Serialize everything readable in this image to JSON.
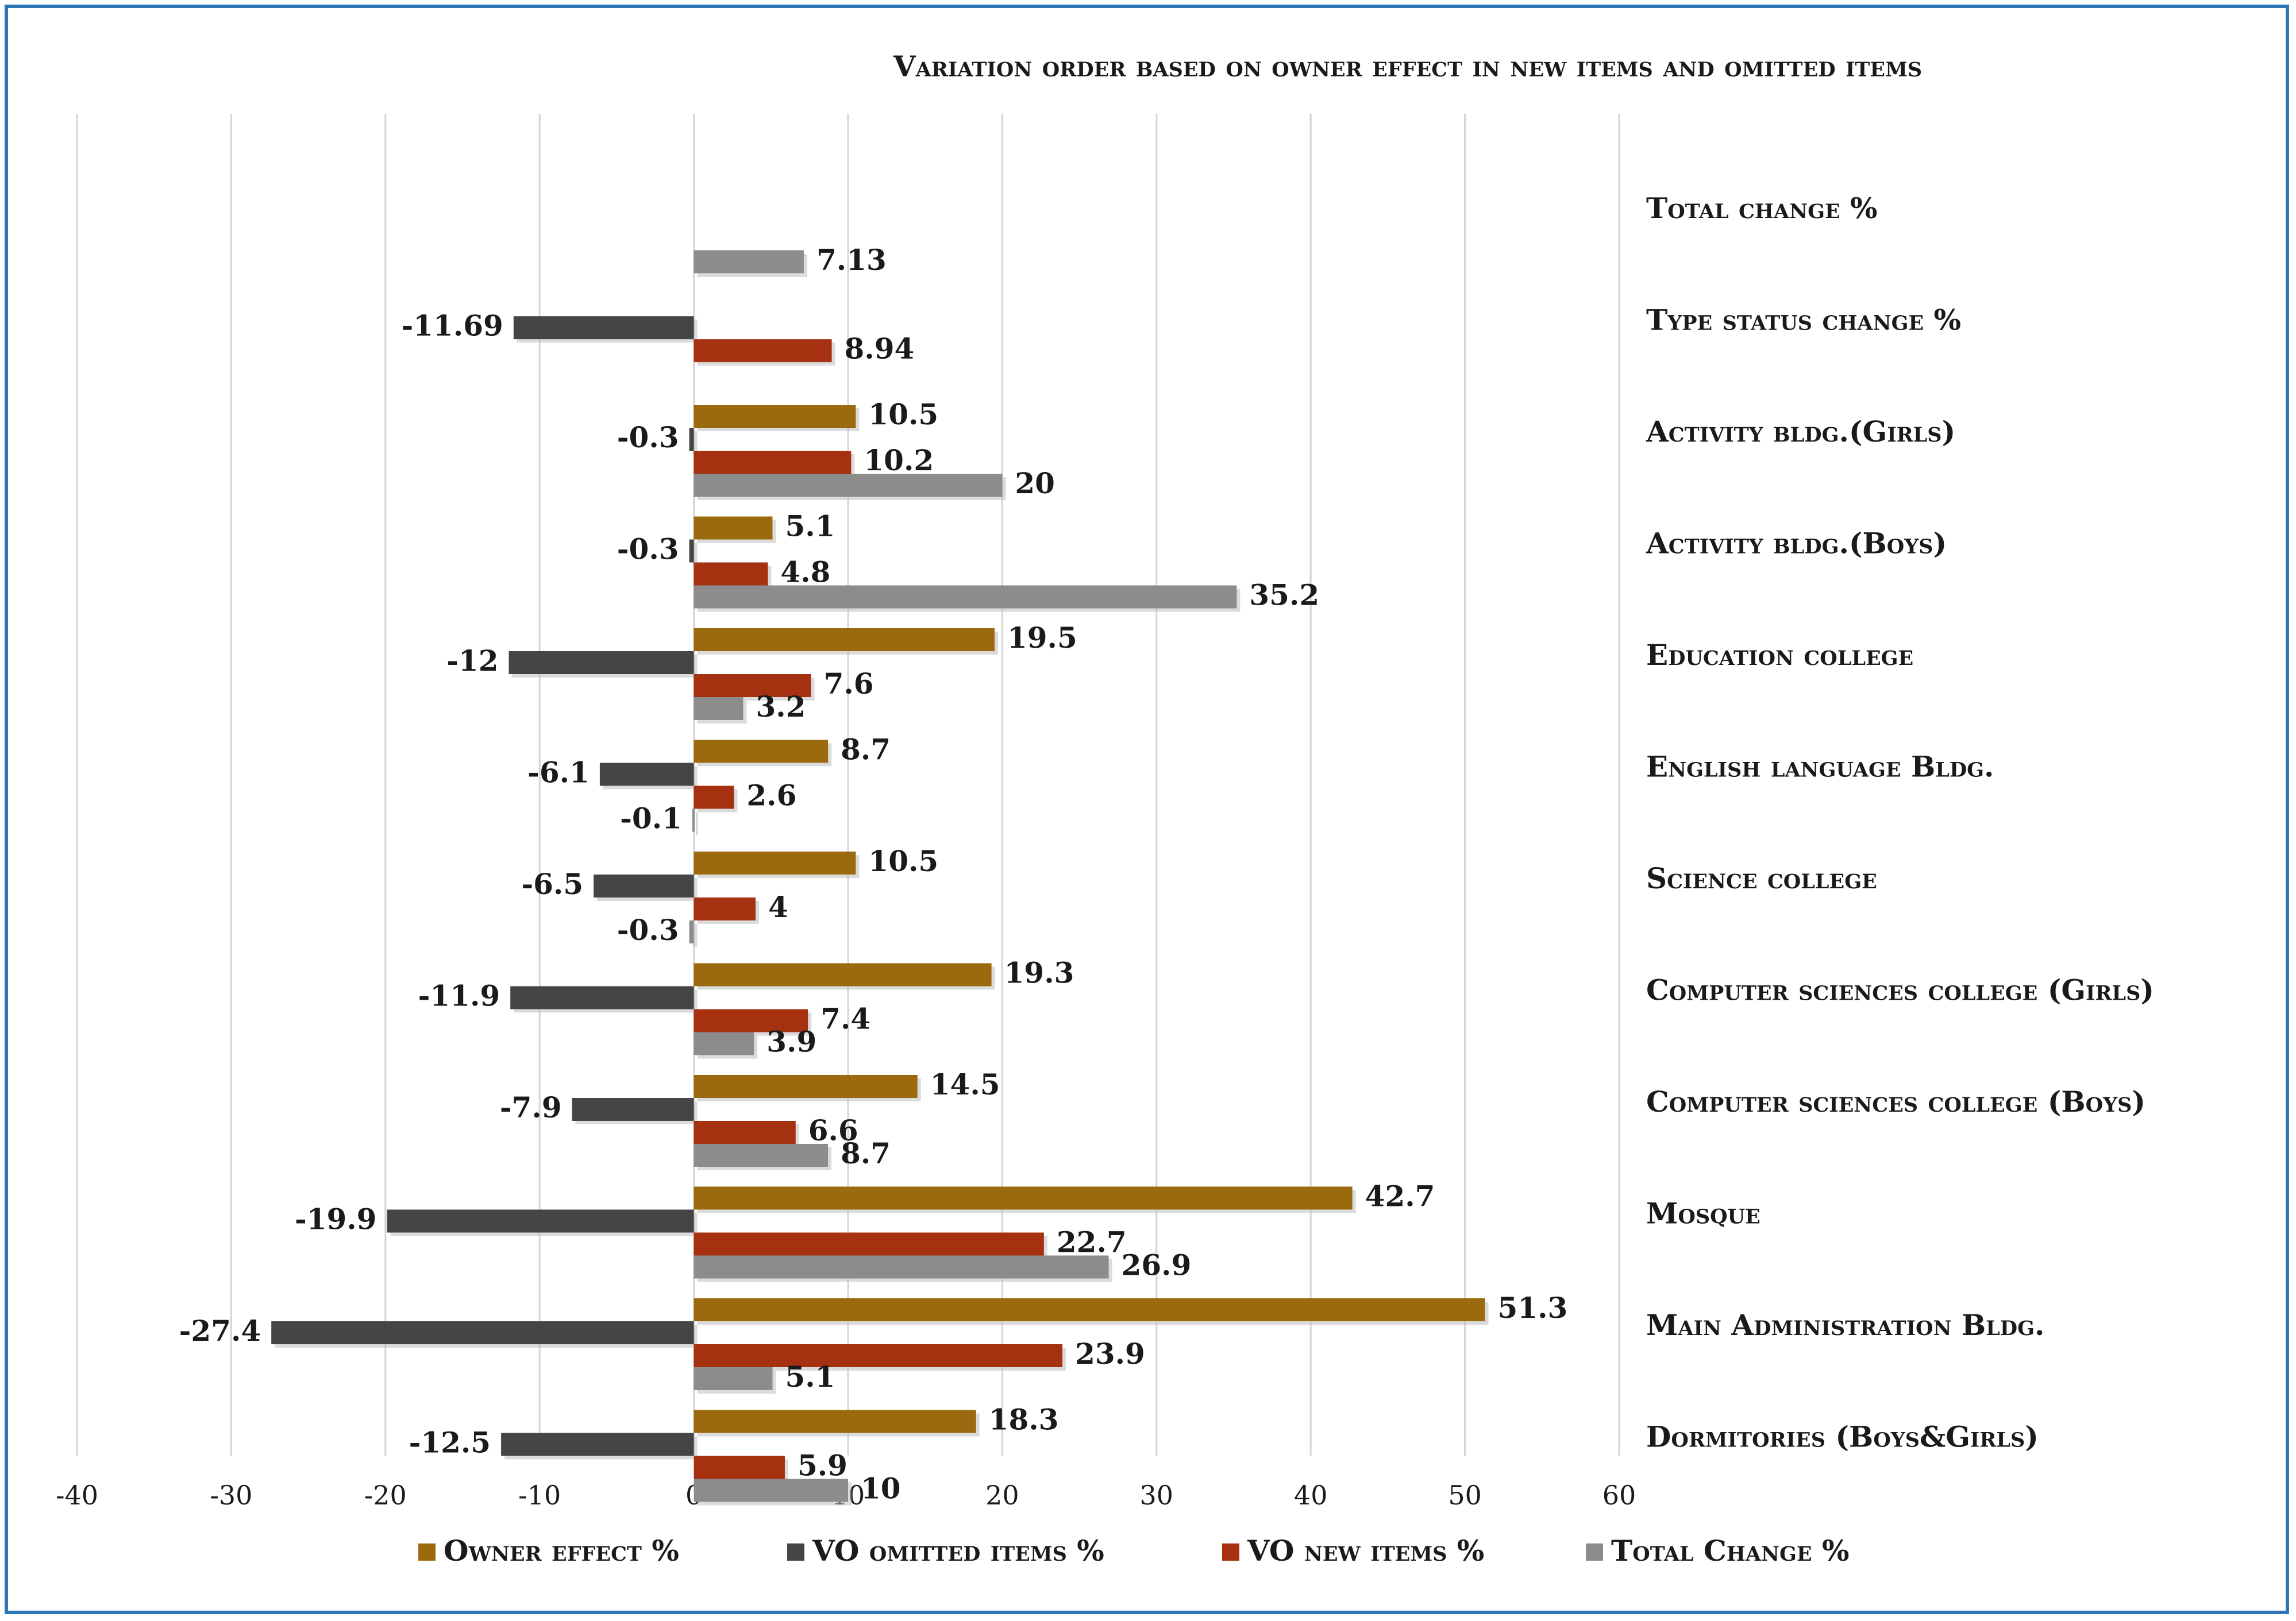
{
  "chart_data": {
    "type": "bar",
    "orientation": "horizontal",
    "title": "Variation order based on owner effect in new items and omitted items",
    "categories": [
      "Total change %",
      "Type status change %",
      "Activity bldg.(Girls)",
      "Activity bldg.(Boys)",
      "Education college",
      "English language Bldg.",
      "Science college",
      "Computer sciences college (Girls)",
      "Computer sciences college (Boys)",
      "Mosque",
      "Main Administration Bldg.",
      "Dormitories (Boys&Girls)"
    ],
    "series": [
      {
        "name": "Owner effect %",
        "color": "#9c6a0e",
        "values": [
          null,
          null,
          10.5,
          5.1,
          19.5,
          8.7,
          10.5,
          19.3,
          14.5,
          42.7,
          51.3,
          18.3
        ],
        "labels": [
          null,
          null,
          "10.5",
          "5.1",
          "19.5",
          "8.7",
          "10.5",
          "19.3",
          "14.5",
          "42.7",
          "51.3",
          "18.3"
        ]
      },
      {
        "name": "VO omitted items %",
        "color": "#454545",
        "values": [
          null,
          -11.69,
          -0.3,
          -0.3,
          -12,
          -6.1,
          -6.5,
          -11.9,
          -7.9,
          -19.9,
          -27.4,
          -12.5
        ],
        "labels": [
          null,
          "-11.69",
          "-0.3",
          "-0.3",
          "-12",
          "-6.1",
          "-6.5",
          "-11.9",
          "-7.9",
          "-19.9",
          "-27.4",
          "-12.5"
        ]
      },
      {
        "name": "VO new items %",
        "color": "#a53111",
        "values": [
          null,
          8.94,
          10.2,
          4.8,
          7.6,
          2.6,
          4,
          7.4,
          6.6,
          22.7,
          23.9,
          5.9
        ],
        "labels": [
          null,
          "8.94",
          "10.2",
          "4.8",
          "7.6",
          "2.6",
          "4",
          "7.4",
          "6.6",
          "22.7",
          "23.9",
          "5.9"
        ]
      },
      {
        "name": "Total Change %",
        "color": "#8c8c8c",
        "values": [
          7.13,
          null,
          20,
          35.2,
          3.2,
          -0.1,
          -0.3,
          3.9,
          8.7,
          26.9,
          5.1,
          10
        ],
        "labels": [
          "7.13",
          null,
          "20",
          "35.2",
          "3.2",
          "-0.1",
          "-0.3",
          "3.9",
          "8.7",
          "26.9",
          "5.1",
          "10"
        ]
      }
    ],
    "xlim": [
      -40,
      60
    ],
    "xticks": [
      -40,
      -30,
      -20,
      -10,
      0,
      10,
      20,
      30,
      40,
      50,
      60
    ],
    "xtick_labels": [
      "-40",
      "-30",
      "-20",
      "-10",
      "0",
      "10",
      "20",
      "30",
      "40",
      "50",
      "60"
    ],
    "xlabel": "",
    "ylabel": "",
    "grid": true,
    "legend_position": "bottom"
  }
}
